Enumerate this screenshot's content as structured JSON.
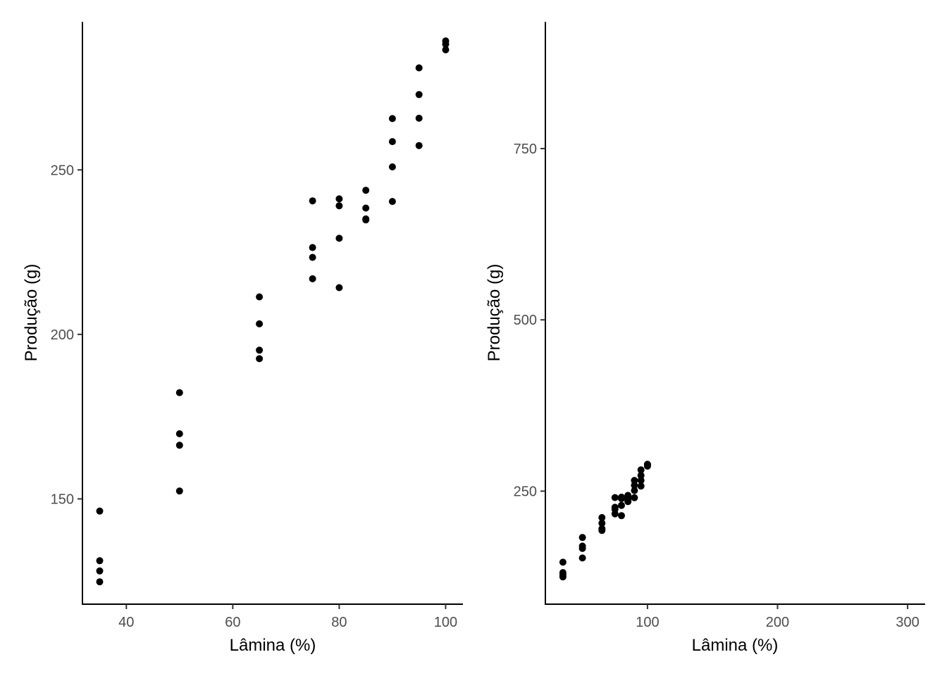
{
  "chart_data": [
    {
      "type": "scatter",
      "title": "",
      "xlabel": "Lâmina (%)",
      "ylabel": "Produção (g)",
      "xlim": [
        31.75,
        103.25
      ],
      "ylim": [
        118,
        295
      ],
      "xticks": [
        40,
        60,
        80,
        100
      ],
      "yticks": [
        150,
        200,
        250
      ],
      "grid": false,
      "point_color": "#000000",
      "points": [
        {
          "x": 35,
          "y": 146.3
        },
        {
          "x": 35,
          "y": 131.2
        },
        {
          "x": 35,
          "y": 128.1
        },
        {
          "x": 35,
          "y": 124.8
        },
        {
          "x": 50,
          "y": 182.3
        },
        {
          "x": 50,
          "y": 169.8
        },
        {
          "x": 50,
          "y": 166.3
        },
        {
          "x": 50,
          "y": 152.4
        },
        {
          "x": 65,
          "y": 211.4
        },
        {
          "x": 65,
          "y": 203.2
        },
        {
          "x": 65,
          "y": 195.2
        },
        {
          "x": 65,
          "y": 192.6
        },
        {
          "x": 75,
          "y": 240.6
        },
        {
          "x": 75,
          "y": 226.4
        },
        {
          "x": 75,
          "y": 223.4
        },
        {
          "x": 75,
          "y": 216.9
        },
        {
          "x": 80,
          "y": 241.2
        },
        {
          "x": 80,
          "y": 239.1
        },
        {
          "x": 80,
          "y": 229.2
        },
        {
          "x": 80,
          "y": 214.2
        },
        {
          "x": 85,
          "y": 243.8
        },
        {
          "x": 85,
          "y": 238.4
        },
        {
          "x": 85,
          "y": 235.1
        },
        {
          "x": 85,
          "y": 234.8
        },
        {
          "x": 90,
          "y": 265.6
        },
        {
          "x": 90,
          "y": 258.6
        },
        {
          "x": 90,
          "y": 250.9
        },
        {
          "x": 90,
          "y": 240.4
        },
        {
          "x": 95,
          "y": 281.0
        },
        {
          "x": 95,
          "y": 272.9
        },
        {
          "x": 95,
          "y": 265.7
        },
        {
          "x": 95,
          "y": 257.4
        },
        {
          "x": 100,
          "y": 289.2
        },
        {
          "x": 100,
          "y": 288.2
        },
        {
          "x": 100,
          "y": 286.5
        }
      ]
    },
    {
      "type": "scatter",
      "title": "",
      "xlabel": "Lâmina (%)",
      "ylabel": "Produção (g)",
      "xlim": [
        21.5,
        313.5
      ],
      "ylim": [
        85,
        935
      ],
      "xticks": [
        100,
        200,
        300
      ],
      "yticks": [
        250,
        500,
        750
      ],
      "grid": false,
      "point_color": "#000000",
      "points": [
        {
          "x": 35,
          "y": 146.3
        },
        {
          "x": 35,
          "y": 131.2
        },
        {
          "x": 35,
          "y": 128.1
        },
        {
          "x": 35,
          "y": 124.8
        },
        {
          "x": 50,
          "y": 182.3
        },
        {
          "x": 50,
          "y": 169.8
        },
        {
          "x": 50,
          "y": 166.3
        },
        {
          "x": 50,
          "y": 152.4
        },
        {
          "x": 65,
          "y": 211.4
        },
        {
          "x": 65,
          "y": 203.2
        },
        {
          "x": 65,
          "y": 195.2
        },
        {
          "x": 65,
          "y": 192.6
        },
        {
          "x": 75,
          "y": 240.6
        },
        {
          "x": 75,
          "y": 226.4
        },
        {
          "x": 75,
          "y": 223.4
        },
        {
          "x": 75,
          "y": 216.9
        },
        {
          "x": 80,
          "y": 241.2
        },
        {
          "x": 80,
          "y": 239.1
        },
        {
          "x": 80,
          "y": 229.2
        },
        {
          "x": 80,
          "y": 214.2
        },
        {
          "x": 85,
          "y": 243.8
        },
        {
          "x": 85,
          "y": 238.4
        },
        {
          "x": 85,
          "y": 235.1
        },
        {
          "x": 85,
          "y": 234.8
        },
        {
          "x": 90,
          "y": 265.6
        },
        {
          "x": 90,
          "y": 258.6
        },
        {
          "x": 90,
          "y": 250.9
        },
        {
          "x": 90,
          "y": 240.4
        },
        {
          "x": 95,
          "y": 281.0
        },
        {
          "x": 95,
          "y": 272.9
        },
        {
          "x": 95,
          "y": 265.7
        },
        {
          "x": 95,
          "y": 257.4
        },
        {
          "x": 100,
          "y": 289.2
        },
        {
          "x": 100,
          "y": 288.2
        },
        {
          "x": 100,
          "y": 286.5
        }
      ]
    }
  ]
}
